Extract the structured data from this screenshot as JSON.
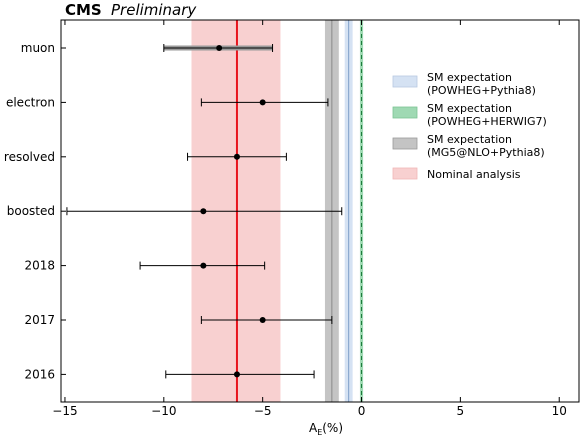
{
  "chart_data": {
    "type": "scatter",
    "title": "CMS",
    "subtitle": "Preliminary",
    "xlabel": "A_E(%)",
    "xlabel_main": "A",
    "xlabel_sub": "E",
    "xlabel_unit": "(%)",
    "ylabel": "",
    "xlim": [
      -15.2,
      11.0
    ],
    "x_ticks": [
      -15,
      -10,
      -5,
      0,
      5,
      10
    ],
    "x_tick_labels": [
      "−15",
      "−10",
      "−5",
      "0",
      "5",
      "10"
    ],
    "categories": [
      "muon",
      "electron",
      "resolved",
      "boosted",
      "2018",
      "2017",
      "2016"
    ],
    "points": [
      {
        "category": "muon",
        "value": -7.2,
        "err_low": -10.0,
        "err_high": -4.5,
        "syst_band": true
      },
      {
        "category": "electron",
        "value": -5.0,
        "err_low": -8.1,
        "err_high": -1.7,
        "syst_band": false
      },
      {
        "category": "resolved",
        "value": -6.3,
        "err_low": -8.8,
        "err_high": -3.8,
        "syst_band": false
      },
      {
        "category": "boosted",
        "value": -8.0,
        "err_low": -14.9,
        "err_high": -1.0,
        "syst_band": false
      },
      {
        "category": "2018",
        "value": -8.0,
        "err_low": -11.2,
        "err_high": -4.9,
        "syst_band": false
      },
      {
        "category": "2017",
        "value": -5.0,
        "err_low": -8.1,
        "err_high": -1.5,
        "syst_band": false
      },
      {
        "category": "2016",
        "value": -6.3,
        "err_low": -9.9,
        "err_high": -2.4,
        "syst_band": false
      }
    ],
    "nominal": {
      "value": -6.3,
      "band": [
        -8.6,
        -4.1
      ],
      "line_color": "#e8141e",
      "band_color": "#f8d0d0"
    },
    "sm_expectations": [
      {
        "band": [
          -0.85,
          -0.45
        ],
        "color": "#d5e2f3",
        "line": -0.65,
        "line_color": "#7f9fc8"
      },
      {
        "band": [
          -0.08,
          0.08
        ],
        "color": "#9fd9b3",
        "line": 0.0,
        "line_color": "#1a7a3a"
      },
      {
        "band": [
          -1.85,
          -1.15
        ],
        "color": "#c4c4c4",
        "line": -1.5,
        "line_color": "#8a8a8a"
      }
    ],
    "legend_position": "right",
    "legend": [
      {
        "line1": "SM expectation",
        "line2": "(POWHEG+Pythia8)",
        "color": "#d5e2f3",
        "edge": "#b8c9e2"
      },
      {
        "line1": "SM expectation",
        "line2": "(POWHEG+HERWIG7)",
        "color": "#9fd9b3",
        "edge": "#7cc493"
      },
      {
        "line1": "SM expectation",
        "line2": "(MG5@NLO+Pythia8)",
        "color": "#c4c4c4",
        "edge": "#9a9a9a"
      },
      {
        "line1": "Nominal analysis",
        "line2": "",
        "color": "#f8d0d0",
        "edge": "#f0b8b8"
      }
    ]
  }
}
